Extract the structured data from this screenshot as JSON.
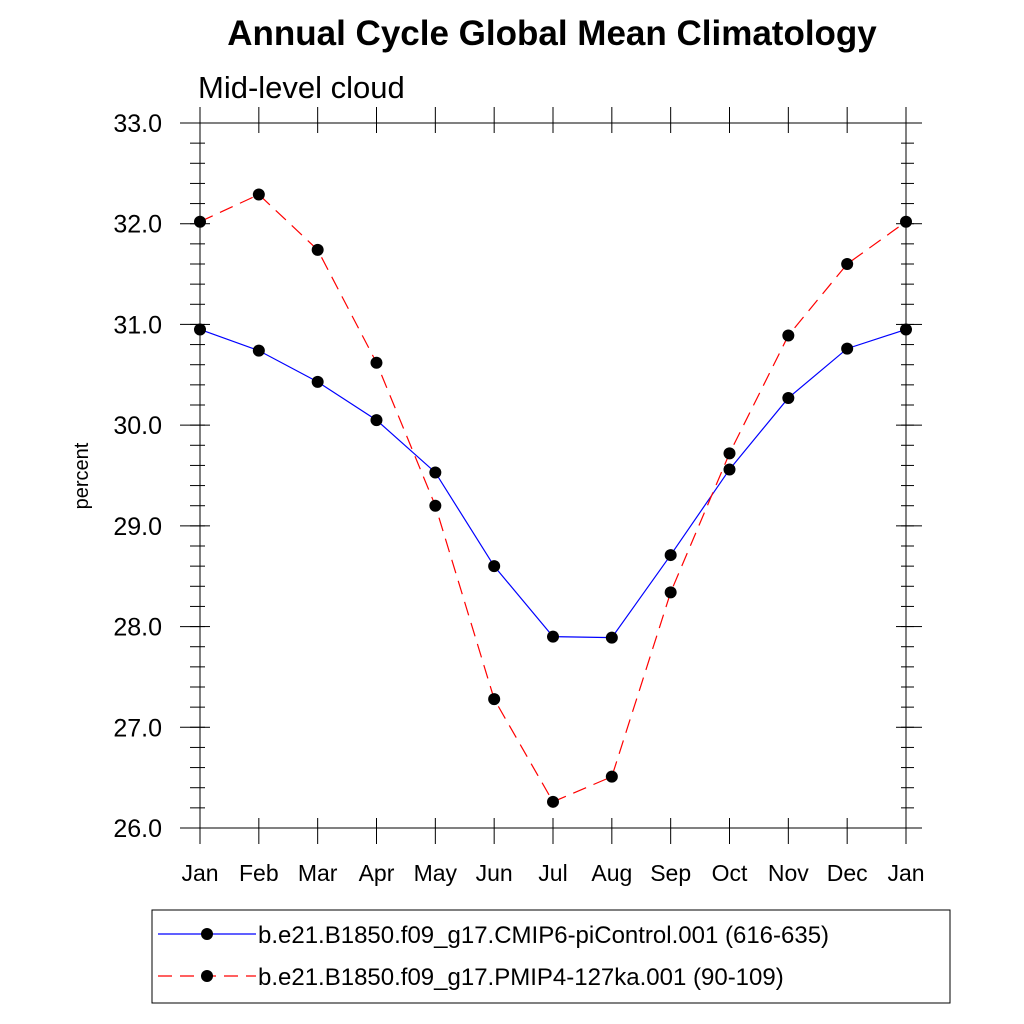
{
  "title": "Annual Cycle Global Mean Climatology",
  "subtitle": "Mid-level cloud",
  "chart_data": {
    "type": "line",
    "title": "Annual Cycle Global Mean Climatology",
    "subtitle": "Mid-level cloud",
    "xlabel": "",
    "ylabel": "percent",
    "categories": [
      "Jan",
      "Feb",
      "Mar",
      "Apr",
      "May",
      "Jun",
      "Jul",
      "Aug",
      "Sep",
      "Oct",
      "Nov",
      "Dec",
      "Jan"
    ],
    "ylim": [
      26.0,
      33.0
    ],
    "yticks": [
      "26.0",
      "27.0",
      "28.0",
      "29.0",
      "30.0",
      "31.0",
      "32.0",
      "33.0"
    ],
    "grid": false,
    "legend_placement": "bottom",
    "series": [
      {
        "name": "b.e21.B1850.f09_g17.CMIP6-piControl.001 (616-635)",
        "color": "#0000ff",
        "line_style": "solid",
        "marker": "filled-circle",
        "values": [
          30.95,
          30.74,
          30.43,
          30.05,
          29.53,
          28.6,
          27.9,
          27.89,
          28.71,
          29.56,
          30.27,
          30.76,
          30.95
        ]
      },
      {
        "name": "b.e21.B1850.f09_g17.PMIP4-127ka.001 (90-109)",
        "color": "#ff0000",
        "line_style": "dashed",
        "marker": "filled-circle",
        "values": [
          32.02,
          32.29,
          31.74,
          30.62,
          29.2,
          27.28,
          26.26,
          26.51,
          28.34,
          29.72,
          30.89,
          31.6,
          32.02
        ]
      }
    ]
  }
}
